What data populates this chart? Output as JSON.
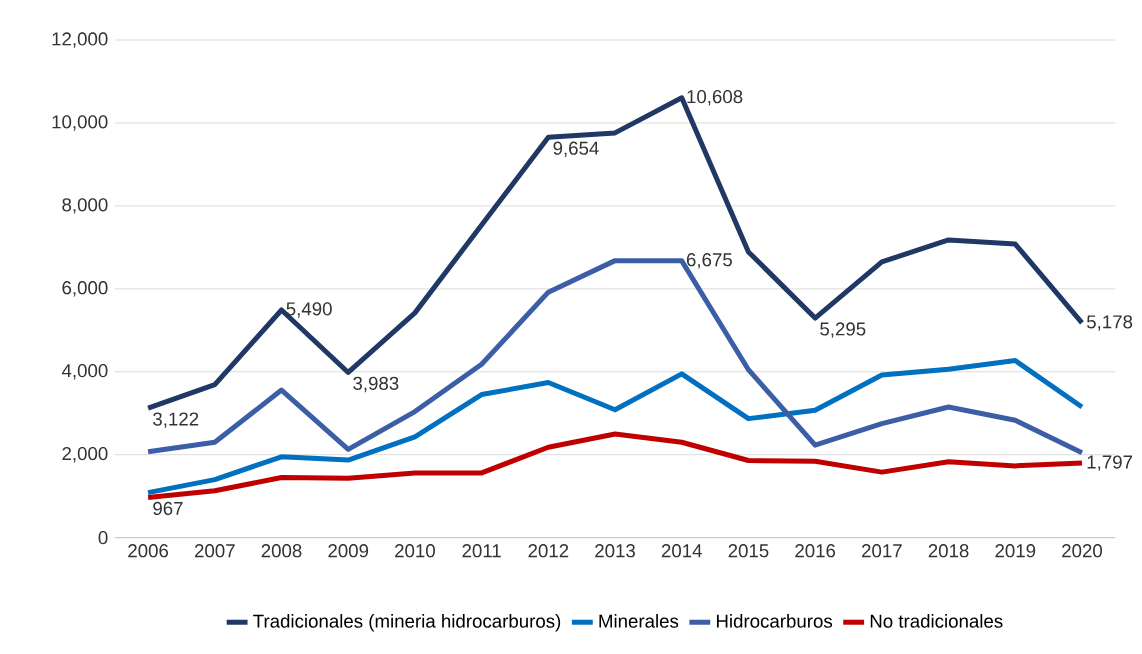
{
  "chart_data": {
    "type": "line",
    "categories": [
      "2006",
      "2007",
      "2008",
      "2009",
      "2010",
      "2011",
      "2012",
      "2013",
      "2014",
      "2015",
      "2016",
      "2017",
      "2018",
      "2019",
      "2020"
    ],
    "ylim": [
      0,
      12000
    ],
    "yticks": [
      {
        "value": 0,
        "label": "0"
      },
      {
        "value": 2000,
        "label": "2,000"
      },
      {
        "value": 4000,
        "label": "4,000"
      },
      {
        "value": 6000,
        "label": "6,000"
      },
      {
        "value": 8000,
        "label": "8,000"
      },
      {
        "value": 10000,
        "label": "10,000"
      },
      {
        "value": 12000,
        "label": "12,000"
      }
    ],
    "grid": "y",
    "legend": "bottom",
    "marker": "none",
    "line_style": "solid",
    "series": [
      {
        "name": "Tradicionales (mineria hidrocarburos)",
        "color": "#1f3864",
        "values": [
          3122,
          3690,
          5490,
          3983,
          5420,
          7540,
          9654,
          9760,
          10608,
          6890,
          5295,
          6650,
          7180,
          7080,
          5178
        ],
        "value_labels": [
          "3,122",
          null,
          "5,490",
          "3,983",
          null,
          null,
          "9,654",
          null,
          "10,608",
          null,
          "5,295",
          null,
          null,
          null,
          "5,178"
        ]
      },
      {
        "name": "Minerales",
        "color": "#0070c0",
        "values": [
          1085,
          1400,
          1950,
          1870,
          2430,
          3450,
          3740,
          3085,
          3950,
          2870,
          3070,
          3920,
          4060,
          4270,
          3150
        ]
      },
      {
        "name": "Hidrocarburos",
        "color": "#3c5ea6",
        "values": [
          2070,
          2300,
          3560,
          2130,
          3040,
          4180,
          5920,
          6680,
          6675,
          4050,
          2230,
          2750,
          3150,
          2830,
          2050
        ],
        "value_labels": [
          null,
          null,
          null,
          null,
          null,
          null,
          null,
          null,
          "6,675",
          null,
          null,
          null,
          null,
          null,
          null
        ]
      },
      {
        "name": "No tradicionales",
        "color": "#c00000",
        "values": [
          967,
          1130,
          1450,
          1430,
          1560,
          1560,
          2180,
          2500,
          2300,
          1860,
          1840,
          1580,
          1830,
          1730,
          1797
        ],
        "value_labels": [
          "967",
          null,
          null,
          null,
          null,
          null,
          null,
          null,
          null,
          null,
          null,
          null,
          null,
          null,
          "1,797"
        ]
      }
    ]
  }
}
